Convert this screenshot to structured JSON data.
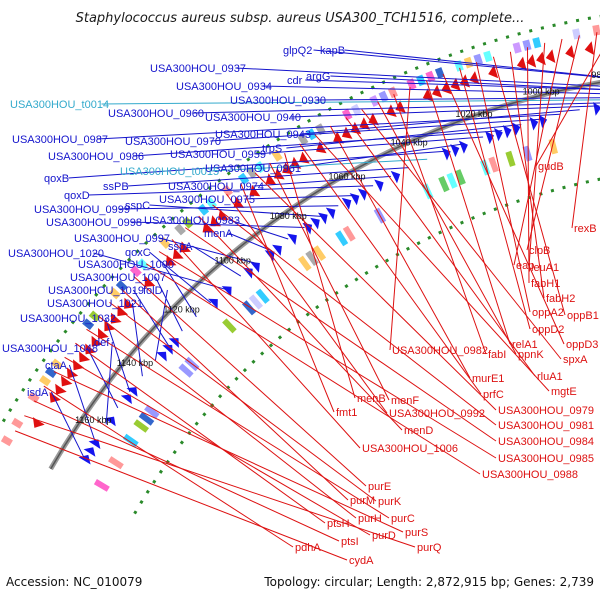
{
  "title": "Staphylococcus aureus subsp. aureus USA300_TCH1516, complete...",
  "accession": "Accession: NC_010079",
  "topology": "Topology: circular; Length: 2,872,915 bp; Genes: 2,739",
  "colors": {
    "plus_strand_label": "#1414cc",
    "minus_strand_label": "#dd1111",
    "rna_label": "#33aacc",
    "backbone": "#888888",
    "gc_dots": "#2a8a2a"
  },
  "ticks": [
    "920 kbp",
    "940 kbp",
    "960 kbp",
    "980 kbp",
    "1000 kbp",
    "1020 kbp",
    "1040 kbp",
    "1060 kbp",
    "1080 kbp",
    "1100 kbp",
    "1120 kbp",
    "1140 kbp",
    "1160 kbp"
  ],
  "labels_left": [
    {
      "text": "glpQ2",
      "strand": "plus"
    },
    {
      "text": "kapB",
      "strand": "plus"
    },
    {
      "text": "USA300HOU_0937",
      "strand": "plus"
    },
    {
      "text": "cdr",
      "strand": "plus"
    },
    {
      "text": "argG",
      "strand": "plus"
    },
    {
      "text": "USA300HOU_0934",
      "strand": "plus"
    },
    {
      "text": "USA300HOU_0930",
      "strand": "plus"
    },
    {
      "text": "USA300HOU_t0014",
      "strand": "rna"
    },
    {
      "text": "USA300HOU_0960",
      "strand": "plus"
    },
    {
      "text": "USA300HOU_0940",
      "strand": "plus"
    },
    {
      "text": "USA300HOU_0943",
      "strand": "plus"
    },
    {
      "text": "USA300HOU_0987",
      "strand": "plus"
    },
    {
      "text": "USA300HOU_0970",
      "strand": "plus"
    },
    {
      "text": "trpS",
      "strand": "plus"
    },
    {
      "text": "USA300HOU_0986",
      "strand": "plus"
    },
    {
      "text": "USA300HOU_0959",
      "strand": "plus"
    },
    {
      "text": "USA300HOU_0961",
      "strand": "plus"
    },
    {
      "text": "qoxB",
      "strand": "plus"
    },
    {
      "text": "USA300HOU_t0015",
      "strand": "rna"
    },
    {
      "text": "ssPB",
      "strand": "plus"
    },
    {
      "text": "USA300HOU_0974",
      "strand": "plus"
    },
    {
      "text": "qoxD",
      "strand": "plus"
    },
    {
      "text": "USA300HOU_0975",
      "strand": "plus"
    },
    {
      "text": "USA300HOU_0999",
      "strand": "plus"
    },
    {
      "text": "sspC",
      "strand": "plus"
    },
    {
      "text": "USA300HOU_0998",
      "strand": "plus"
    },
    {
      "text": "USA300HOU_0983",
      "strand": "plus"
    },
    {
      "text": "menA",
      "strand": "plus"
    },
    {
      "text": "USA300HOU_0997",
      "strand": "plus"
    },
    {
      "text": "sspA",
      "strand": "plus"
    },
    {
      "text": "USA300HOU_1020",
      "strand": "plus"
    },
    {
      "text": "qoxC",
      "strand": "plus"
    },
    {
      "text": "USA300HOU_1000",
      "strand": "plus"
    },
    {
      "text": "USA300HOU_1007",
      "strand": "plus"
    },
    {
      "text": "USA300HOU_1019",
      "strand": "plus"
    },
    {
      "text": "folD",
      "strand": "plus"
    },
    {
      "text": "USA300HOU_1021",
      "strand": "plus"
    },
    {
      "text": "USA300HOU_1032",
      "strand": "plus"
    },
    {
      "text": "USA300HOU_1048",
      "strand": "plus"
    },
    {
      "text": "def",
      "strand": "plus"
    },
    {
      "text": "ctaA",
      "strand": "plus"
    },
    {
      "text": "isdA",
      "strand": "plus"
    }
  ],
  "labels_right": [
    {
      "text": "gudB",
      "strand": "minus"
    },
    {
      "text": "rexB",
      "strand": "minus"
    },
    {
      "text": "clpB",
      "strand": "minus"
    },
    {
      "text": "eap",
      "strand": "minus"
    },
    {
      "text": "leuA1",
      "strand": "minus"
    },
    {
      "text": "fabH1",
      "strand": "minus"
    },
    {
      "text": "fabH2",
      "strand": "minus"
    },
    {
      "text": "oppB1",
      "strand": "minus"
    },
    {
      "text": "oppA2",
      "strand": "minus"
    },
    {
      "text": "oppD2",
      "strand": "minus"
    },
    {
      "text": "oppD3",
      "strand": "minus"
    },
    {
      "text": "relA1",
      "strand": "minus"
    },
    {
      "text": "USA300HOU_0982",
      "strand": "minus"
    },
    {
      "text": "fabI",
      "strand": "minus"
    },
    {
      "text": "ppnK",
      "strand": "minus"
    },
    {
      "text": "spxA",
      "strand": "minus"
    },
    {
      "text": "rluA1",
      "strand": "minus"
    },
    {
      "text": "murE1",
      "strand": "minus"
    },
    {
      "text": "mgtE",
      "strand": "minus"
    },
    {
      "text": "prfC",
      "strand": "minus"
    },
    {
      "text": "menB",
      "strand": "minus"
    },
    {
      "text": "menF",
      "strand": "minus"
    },
    {
      "text": "USA300HOU_0979",
      "strand": "minus"
    },
    {
      "text": "fmt1",
      "strand": "minus"
    },
    {
      "text": "USA300HOU_0992",
      "strand": "minus"
    },
    {
      "text": "USA300HOU_0981",
      "strand": "minus"
    },
    {
      "text": "menD",
      "strand": "minus"
    },
    {
      "text": "USA300HOU_0984",
      "strand": "minus"
    },
    {
      "text": "USA300HOU_1006",
      "strand": "minus"
    },
    {
      "text": "USA300HOU_0985",
      "strand": "minus"
    },
    {
      "text": "USA300HOU_0988",
      "strand": "minus"
    },
    {
      "text": "purE",
      "strand": "minus"
    },
    {
      "text": "purM",
      "strand": "minus"
    },
    {
      "text": "purK",
      "strand": "minus"
    },
    {
      "text": "purH",
      "strand": "minus"
    },
    {
      "text": "purC",
      "strand": "minus"
    },
    {
      "text": "ptsH",
      "strand": "minus"
    },
    {
      "text": "purD",
      "strand": "minus"
    },
    {
      "text": "purS",
      "strand": "minus"
    },
    {
      "text": "pdhA",
      "strand": "minus"
    },
    {
      "text": "ptsI",
      "strand": "minus"
    },
    {
      "text": "purQ",
      "strand": "minus"
    },
    {
      "text": "cydA",
      "strand": "minus"
    }
  ]
}
